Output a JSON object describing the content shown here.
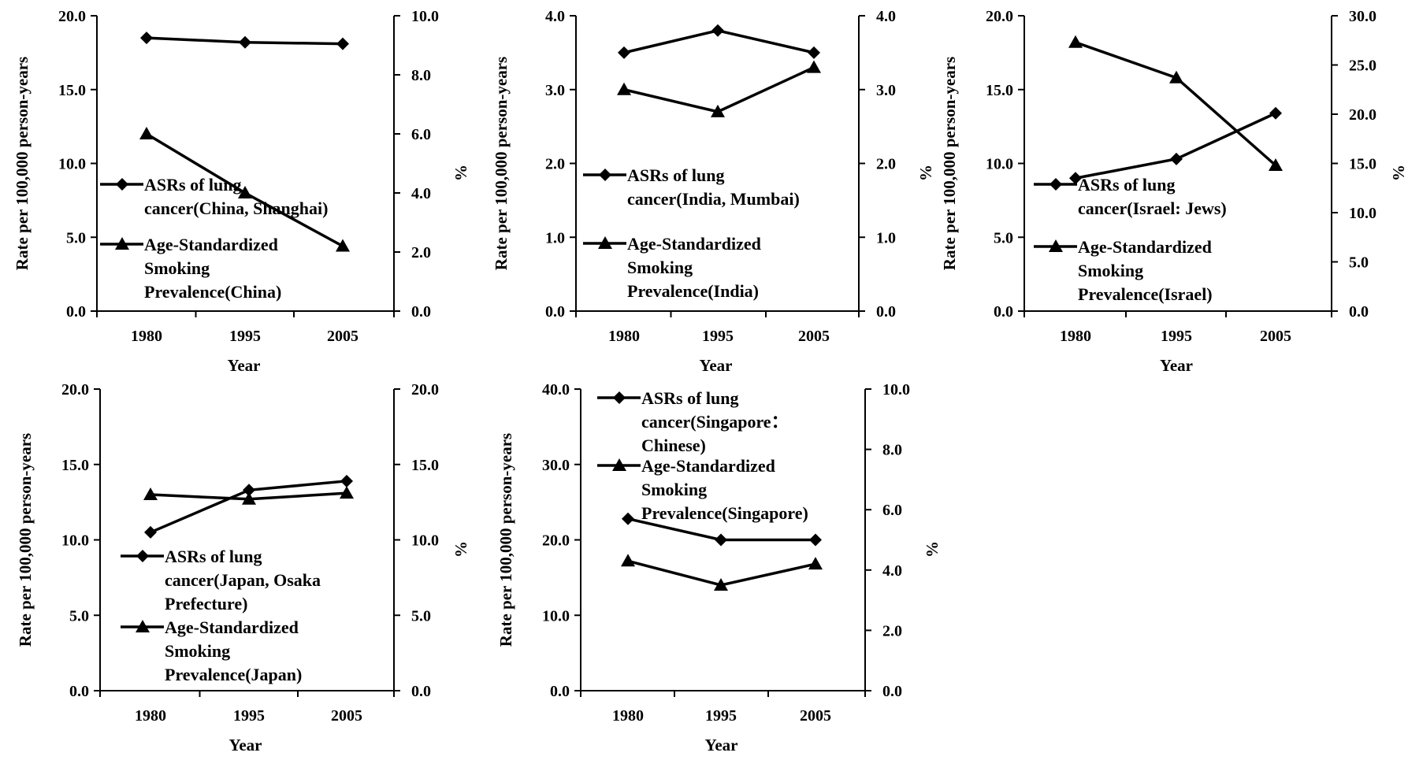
{
  "chart_data": [
    {
      "type": "line",
      "categories": [
        "1980",
        "1995",
        "2005"
      ],
      "xlabel": "Year",
      "ylabel": "Rate per 100,000 person-years",
      "y2label": "%",
      "ylim": [
        0,
        20
      ],
      "yticks": [
        "0.0",
        "5.0",
        "10.0",
        "15.0",
        "20.0"
      ],
      "y2lim": [
        0,
        10
      ],
      "y2ticks": [
        "0.0",
        "2.0",
        "4.0",
        "6.0",
        "8.0",
        "10.0"
      ],
      "series": [
        {
          "name": "ASRs of lung cancer(China, Shanghai)",
          "marker": "diamond",
          "axis": "left",
          "values": [
            18.5,
            18.2,
            18.1
          ],
          "legend_lines": [
            "ASRs of lung",
            "cancer(China, Shanghai)"
          ]
        },
        {
          "name": "Age-Standardized Smoking Prevalence(China)",
          "marker": "triangle",
          "axis": "right",
          "values": [
            6.0,
            4.0,
            2.2
          ],
          "legend_lines": [
            "Age-Standardized",
            "Smoking",
            "Prevalence(China)"
          ]
        }
      ],
      "legend_position": "center-left"
    },
    {
      "type": "line",
      "categories": [
        "1980",
        "1995",
        "2005"
      ],
      "xlabel": "Year",
      "ylabel": "Rate per 100,000 person-years",
      "y2label": "%",
      "ylim": [
        0,
        4
      ],
      "yticks": [
        "0.0",
        "1.0",
        "2.0",
        "3.0",
        "4.0"
      ],
      "y2lim": [
        0,
        4
      ],
      "y2ticks": [
        "0.0",
        "1.0",
        "2.0",
        "3.0",
        "4.0"
      ],
      "series": [
        {
          "name": "ASRs of lung cancer(India, Mumbai)",
          "marker": "diamond",
          "axis": "left",
          "values": [
            3.5,
            3.8,
            3.5
          ],
          "legend_lines": [
            "ASRs of lung",
            "cancer(India, Mumbai)"
          ]
        },
        {
          "name": "Age-Standardized Smoking Prevalence(India)",
          "marker": "triangle",
          "axis": "right",
          "values": [
            3.0,
            2.7,
            3.3
          ],
          "legend_lines": [
            "Age-Standardized",
            "Smoking",
            "Prevalence(India)"
          ]
        }
      ],
      "legend_position": "center-left"
    },
    {
      "type": "line",
      "categories": [
        "1980",
        "1995",
        "2005"
      ],
      "xlabel": "Year",
      "ylabel": "Rate per 100,000 person-years",
      "y2label": "%",
      "ylim": [
        0,
        20
      ],
      "yticks": [
        "0.0",
        "5.0",
        "10.0",
        "15.0",
        "20.0"
      ],
      "y2lim": [
        0,
        30
      ],
      "y2ticks": [
        "0.0",
        "5.0",
        "10.0",
        "15.0",
        "20.0",
        "25.0",
        "30.0"
      ],
      "series": [
        {
          "name": "ASRs of lung cancer(Israel: Jews)",
          "marker": "diamond",
          "axis": "left",
          "values": [
            9.0,
            10.3,
            13.4
          ],
          "legend_lines": [
            "ASRs of lung",
            "cancer(Israel: Jews)"
          ]
        },
        {
          "name": "Age-Standardized Smoking Prevalence(Israel)",
          "marker": "triangle",
          "axis": "right",
          "values": [
            27.3,
            23.7,
            14.8
          ],
          "legend_lines": [
            "Age-Standardized",
            "Smoking",
            "Prevalence(Israel)"
          ]
        }
      ],
      "legend_position": "center-left"
    },
    {
      "type": "line",
      "categories": [
        "1980",
        "1995",
        "2005"
      ],
      "xlabel": "Year",
      "ylabel": "Rate per 100,000 person-years",
      "y2label": "%",
      "ylim": [
        0,
        20
      ],
      "yticks": [
        "0.0",
        "5.0",
        "10.0",
        "15.0",
        "20.0"
      ],
      "y2lim": [
        0,
        20
      ],
      "y2ticks": [
        "0.0",
        "5.0",
        "10.0",
        "15.0",
        "20.0"
      ],
      "series": [
        {
          "name": "ASRs of lung cancer(Japan, Osaka Prefecture)",
          "marker": "diamond",
          "axis": "left",
          "values": [
            10.5,
            13.3,
            13.9
          ],
          "legend_lines": [
            "ASRs of lung",
            "cancer(Japan, Osaka",
            "Prefecture)"
          ]
        },
        {
          "name": "Age-Standardized Smoking Prevalence(Japan)",
          "marker": "triangle",
          "axis": "right",
          "values": [
            13.0,
            12.7,
            13.1
          ],
          "legend_lines": [
            "Age-Standardized",
            "Smoking",
            "Prevalence(Japan)"
          ]
        }
      ],
      "legend_position": "lower-left"
    },
    {
      "type": "line",
      "categories": [
        "1980",
        "1995",
        "2005"
      ],
      "xlabel": "Year",
      "ylabel": "Rate per 100,000 person-years",
      "y2label": "%",
      "ylim": [
        0,
        40
      ],
      "yticks": [
        "0.0",
        "10.0",
        "20.0",
        "30.0",
        "40.0"
      ],
      "y2lim": [
        0,
        10
      ],
      "y2ticks": [
        "0.0",
        "2.0",
        "4.0",
        "6.0",
        "8.0",
        "10.0"
      ],
      "series": [
        {
          "name": "ASRs of lung cancer(Singapore：Chinese)",
          "marker": "diamond",
          "axis": "left",
          "values": [
            22.8,
            20.0,
            20.0
          ],
          "legend_lines": [
            "ASRs of lung",
            "cancer(Singapore：",
            "Chinese)"
          ]
        },
        {
          "name": "Age-Standardized Smoking Prevalence(Singapore)",
          "marker": "triangle",
          "axis": "right",
          "values": [
            4.3,
            3.5,
            4.2
          ],
          "legend_lines": [
            "Age-Standardized",
            "Smoking",
            "Prevalence(Singapore)"
          ]
        }
      ],
      "legend_position": "upper-left"
    }
  ]
}
